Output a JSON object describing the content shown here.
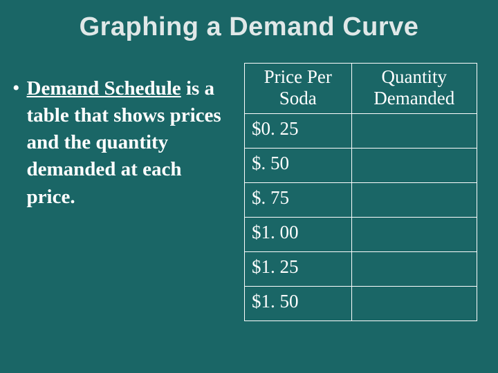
{
  "colors": {
    "background": "#1a6666",
    "title_text": "#e0e8e8",
    "body_text": "#ffffff",
    "table_border": "#ffffff"
  },
  "typography": {
    "title_font": "Arial",
    "title_fontsize": 38,
    "title_weight": "bold",
    "body_font": "Times New Roman",
    "body_fontsize": 29,
    "body_weight": "bold",
    "table_fontsize": 27
  },
  "title": "Graphing a Demand Curve",
  "bullet": {
    "term": "Demand Schedule",
    "rest": " is a table that shows prices and the quantity demanded at each price."
  },
  "table": {
    "type": "table",
    "columns": [
      {
        "label": "Price Per Soda",
        "key": "price",
        "width_pct": 46,
        "align": "left"
      },
      {
        "label": "Quantity Demanded",
        "key": "qty",
        "width_pct": 54,
        "align": "left"
      }
    ],
    "rows": [
      {
        "price": "$0. 25",
        "qty": ""
      },
      {
        "price": "$. 50",
        "qty": ""
      },
      {
        "price": "$. 75",
        "qty": ""
      },
      {
        "price": "$1. 00",
        "qty": ""
      },
      {
        "price": "$1. 25",
        "qty": ""
      },
      {
        "price": "$1. 50",
        "qty": ""
      }
    ],
    "border_color": "#ffffff",
    "border_width": 1.5,
    "header_align": "center"
  }
}
